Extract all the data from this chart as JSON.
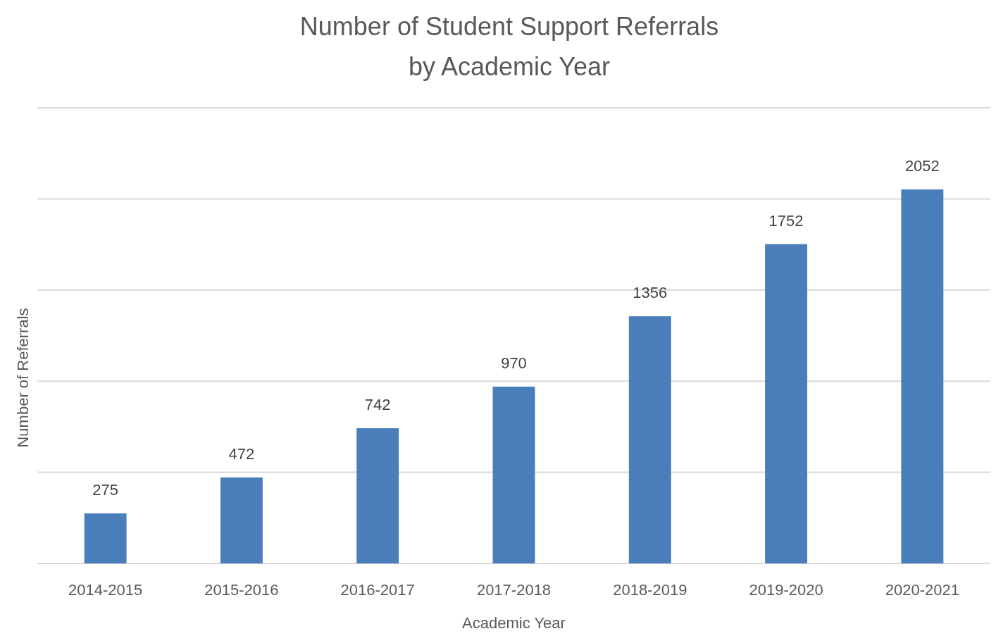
{
  "chart_data": {
    "type": "bar",
    "title": "Number of Student Support Referrals\nby Academic Year",
    "xlabel": "Academic Year",
    "ylabel": "Number of Referrals",
    "categories": [
      "2014-2015",
      "2015-2016",
      "2016-2017",
      "2017-2018",
      "2018-2019",
      "2019-2020",
      "2020-2021"
    ],
    "values": [
      275,
      472,
      742,
      970,
      1356,
      1752,
      2052
    ],
    "color": "#4a7ebb",
    "ylim": [
      0,
      2500
    ],
    "yticks": [
      {
        "value": 0,
        "label": null
      },
      {
        "value": 500,
        "label": null
      },
      {
        "value": 1000,
        "label": null
      },
      {
        "value": 1500,
        "label": null
      },
      {
        "value": 2000,
        "label": null
      },
      {
        "value": 2500,
        "label": null
      }
    ],
    "grid": "y",
    "tick_labels": "x",
    "data_labels": true
  }
}
